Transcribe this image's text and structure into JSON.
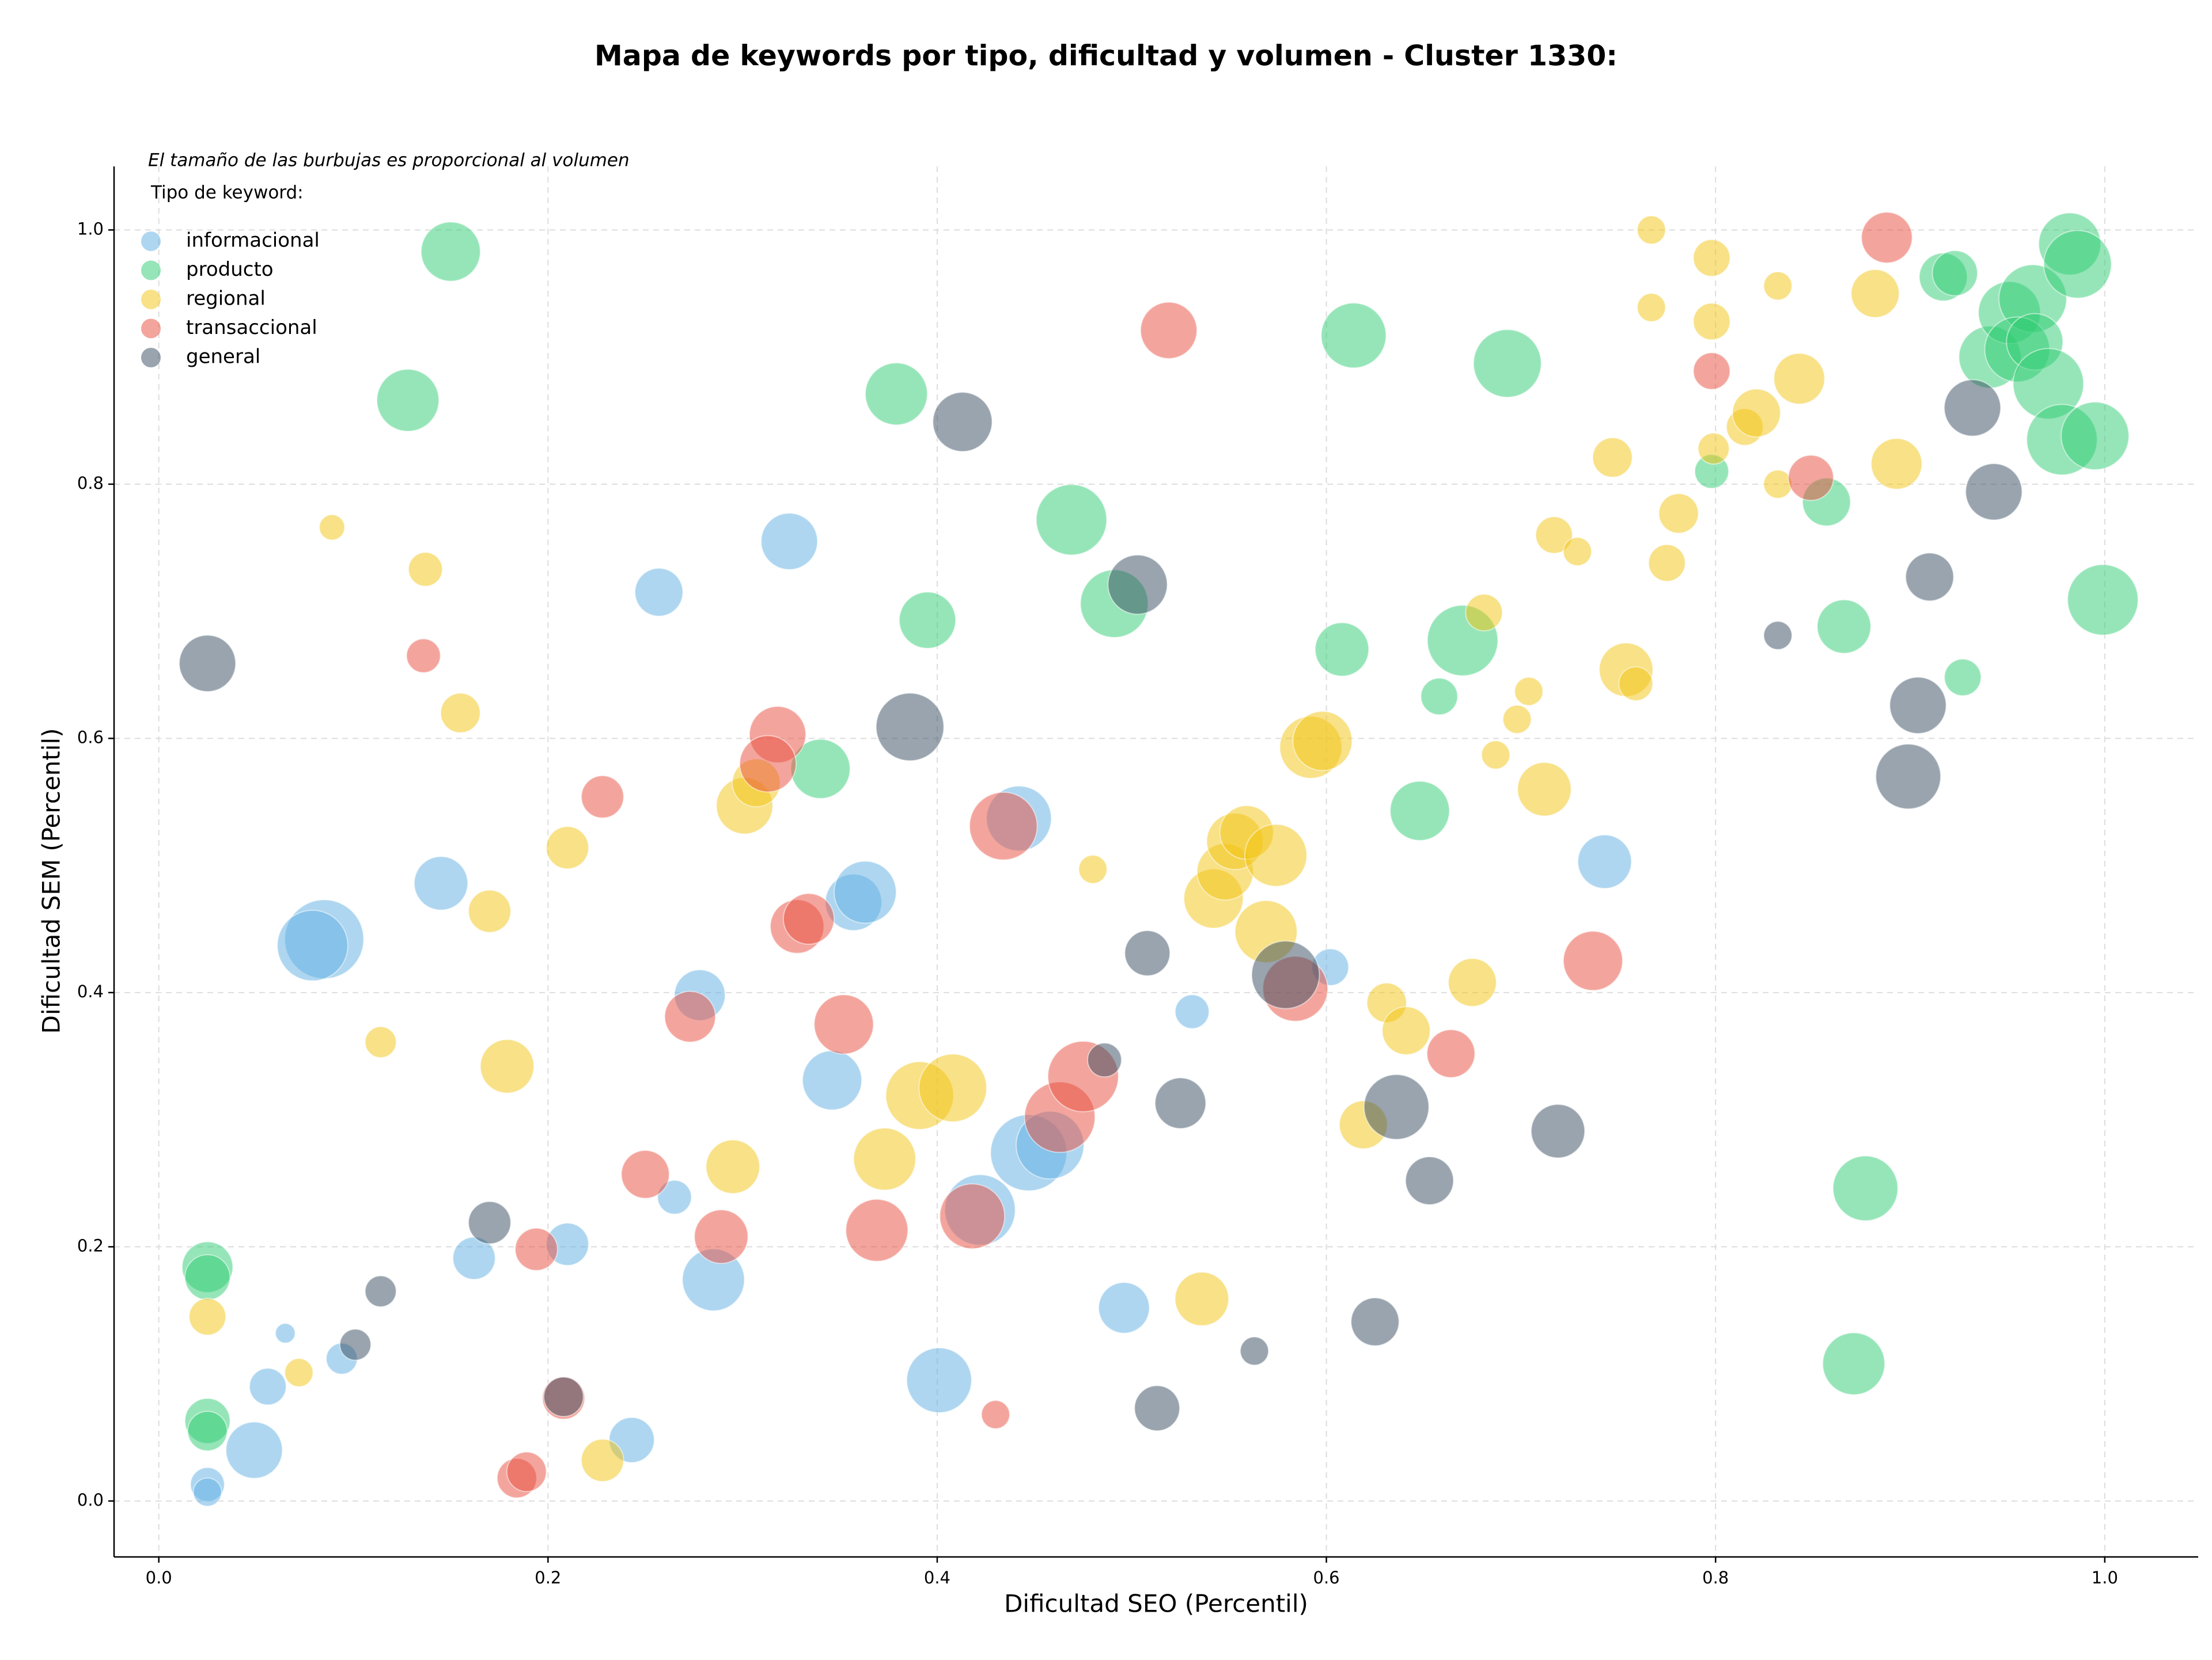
{
  "chart_data": {
    "type": "scatter",
    "title": "Mapa de keywords por tipo, dificultad y volumen - Cluster 1330:",
    "xlabel": "Dificultad SEO (Percentil)",
    "ylabel": "Dificultad SEM (Percentil)",
    "annotation": "El tamaño de las burbujas es proporcional al volumen",
    "legend_title": "Tipo de keyword:",
    "legend_position": "upper left",
    "grid": true,
    "xlim": [
      -0.023,
      1.048
    ],
    "ylim": [
      -0.044,
      1.05
    ],
    "xticks": [
      {
        "value": 0,
        "label": "0.0"
      },
      0.2,
      0.4,
      0.6,
      0.8,
      {
        "value": 1,
        "label": "1.0"
      }
    ],
    "yticks": [
      {
        "value": 0,
        "label": "0.0"
      },
      0.2,
      0.4,
      0.6,
      0.8,
      {
        "value": 1,
        "label": "1.0"
      }
    ],
    "series": [
      {
        "name": "informacional",
        "color": "#5dade2",
        "x": [
          0.025,
          0.025,
          0.049,
          0.056,
          0.094,
          0.065,
          0.085,
          0.079,
          0.145,
          0.162,
          0.21,
          0.265,
          0.278,
          0.285,
          0.243,
          0.257,
          0.324,
          0.346,
          0.357,
          0.363,
          0.442,
          0.401,
          0.422,
          0.447,
          0.458,
          0.496,
          0.531,
          0.602,
          0.743
        ],
        "values": [
          0.013,
          0.007,
          0.04,
          0.09,
          0.112,
          0.132,
          0.442,
          0.437,
          0.486,
          0.191,
          0.202,
          0.239,
          0.398,
          0.174,
          0.048,
          0.715,
          0.755,
          0.331,
          0.471,
          0.479,
          0.537,
          0.095,
          0.229,
          0.274,
          0.28,
          0.152,
          0.385,
          0.42,
          0.503
        ],
        "sizes": [
          144,
          100,
          400,
          169,
          121,
          49,
          784,
          625,
          361,
          225,
          225,
          144,
          324,
          484,
          256,
          289,
          400,
          441,
          400,
          484,
          529,
          529,
          625,
          729,
          576,
          324,
          144,
          169,
          361
        ]
      },
      {
        "name": "producto",
        "color": "#2ecc71",
        "x": [
          0.025,
          0.025,
          0.025,
          0.025,
          0.128,
          0.15,
          0.34,
          0.379,
          0.395,
          0.469,
          0.491,
          0.614,
          0.608,
          0.658,
          0.648,
          0.67,
          0.693,
          0.798,
          0.857,
          0.866,
          0.877,
          0.871,
          0.917,
          0.923,
          0.927,
          0.941,
          0.951,
          0.963,
          0.955,
          0.964,
          0.971,
          0.978,
          0.982,
          0.986,
          0.995,
          0.999
        ],
        "values": [
          0.184,
          0.176,
          0.063,
          0.055,
          0.866,
          0.983,
          0.576,
          0.871,
          0.693,
          0.772,
          0.706,
          0.917,
          0.67,
          0.633,
          0.543,
          0.677,
          0.895,
          0.81,
          0.786,
          0.688,
          0.246,
          0.108,
          0.963,
          0.966,
          0.648,
          0.9,
          0.935,
          0.946,
          0.906,
          0.912,
          0.879,
          0.835,
          0.989,
          0.973,
          0.838,
          0.709
        ],
        "sizes": [
          324,
          256,
          256,
          196,
          484,
          441,
          441,
          484,
          400,
          625,
          576,
          529,
          361,
          169,
          441,
          625,
          576,
          144,
          289,
          361,
          529,
          484,
          289,
          256,
          169,
          484,
          484,
          576,
          529,
          400,
          625,
          625,
          484,
          576,
          576,
          625
        ]
      },
      {
        "name": "regional",
        "color": "#f1c40f",
        "x": [
          0.025,
          0.072,
          0.089,
          0.114,
          0.137,
          0.155,
          0.17,
          0.179,
          0.21,
          0.228,
          0.295,
          0.301,
          0.307,
          0.373,
          0.391,
          0.408,
          0.48,
          0.536,
          0.542,
          0.548,
          0.553,
          0.559,
          0.574,
          0.569,
          0.592,
          0.598,
          0.619,
          0.631,
          0.641,
          0.675,
          0.681,
          0.687,
          0.698,
          0.704,
          0.712,
          0.717,
          0.729,
          0.747,
          0.754,
          0.759,
          0.767,
          0.767,
          0.775,
          0.781,
          0.798,
          0.798,
          0.799,
          0.815,
          0.821,
          0.832,
          0.832,
          0.843,
          0.882,
          0.893
        ],
        "values": [
          0.145,
          0.101,
          0.766,
          0.361,
          0.733,
          0.62,
          0.464,
          0.342,
          0.514,
          0.032,
          0.263,
          0.547,
          0.565,
          0.269,
          0.319,
          0.325,
          0.497,
          0.159,
          0.474,
          0.495,
          0.519,
          0.526,
          0.508,
          0.448,
          0.593,
          0.598,
          0.296,
          0.392,
          0.37,
          0.408,
          0.699,
          0.587,
          0.615,
          0.637,
          0.56,
          0.76,
          0.747,
          0.821,
          0.654,
          0.643,
          1.0,
          0.939,
          0.738,
          0.777,
          0.978,
          0.928,
          0.828,
          0.845,
          0.856,
          0.956,
          0.8,
          0.883,
          0.95,
          0.816
        ],
        "sizes": [
          169,
          100,
          81,
          121,
          144,
          196,
          225,
          361,
          225,
          225,
          361,
          400,
          289,
          484,
          576,
          576,
          100,
          361,
          441,
          400,
          400,
          361,
          484,
          484,
          484,
          441,
          289,
          196,
          289,
          289,
          169,
          100,
          100,
          100,
          361,
          169,
          100,
          196,
          361,
          144,
          100,
          100,
          169,
          196,
          169,
          169,
          121,
          169,
          289,
          100,
          100,
          324,
          289,
          324
        ]
      },
      {
        "name": "transaccional",
        "color": "#e74c3c",
        "x": [
          0.184,
          0.189,
          0.136,
          0.194,
          0.208,
          0.228,
          0.25,
          0.273,
          0.289,
          0.318,
          0.313,
          0.328,
          0.334,
          0.352,
          0.369,
          0.418,
          0.434,
          0.43,
          0.463,
          0.475,
          0.519,
          0.584,
          0.664,
          0.737,
          0.798,
          0.849,
          0.888
        ],
        "values": [
          0.018,
          0.023,
          0.665,
          0.198,
          0.081,
          0.554,
          0.257,
          0.381,
          0.208,
          0.603,
          0.58,
          0.452,
          0.458,
          0.375,
          0.213,
          0.224,
          0.531,
          0.068,
          0.302,
          0.334,
          0.921,
          0.403,
          0.352,
          0.425,
          0.889,
          0.805,
          0.994
        ],
        "sizes": [
          196,
          196,
          144,
          225,
          225,
          225,
          289,
          324,
          361,
          400,
          400,
          361,
          324,
          441,
          484,
          529,
          576,
          100,
          625,
          625,
          400,
          529,
          289,
          441,
          169,
          256,
          324
        ]
      },
      {
        "name": "general",
        "color": "#34495e",
        "x": [
          0.025,
          0.101,
          0.114,
          0.17,
          0.208,
          0.486,
          0.386,
          0.413,
          0.503,
          0.508,
          0.513,
          0.525,
          0.563,
          0.579,
          0.625,
          0.636,
          0.653,
          0.719,
          0.832,
          0.899,
          0.904,
          0.91,
          0.932,
          0.943
        ],
        "values": [
          0.659,
          0.123,
          0.165,
          0.219,
          0.082,
          0.347,
          0.609,
          0.849,
          0.721,
          0.431,
          0.073,
          0.313,
          0.118,
          0.414,
          0.141,
          0.31,
          0.252,
          0.291,
          0.681,
          0.57,
          0.626,
          0.727,
          0.86,
          0.794
        ],
        "sizes": [
          400,
          121,
          121,
          225,
          196,
          144,
          576,
          441,
          441,
          256,
          256,
          324,
          100,
          576,
          289,
          529,
          289,
          361,
          100,
          529,
          400,
          289,
          400,
          400
        ]
      }
    ]
  }
}
